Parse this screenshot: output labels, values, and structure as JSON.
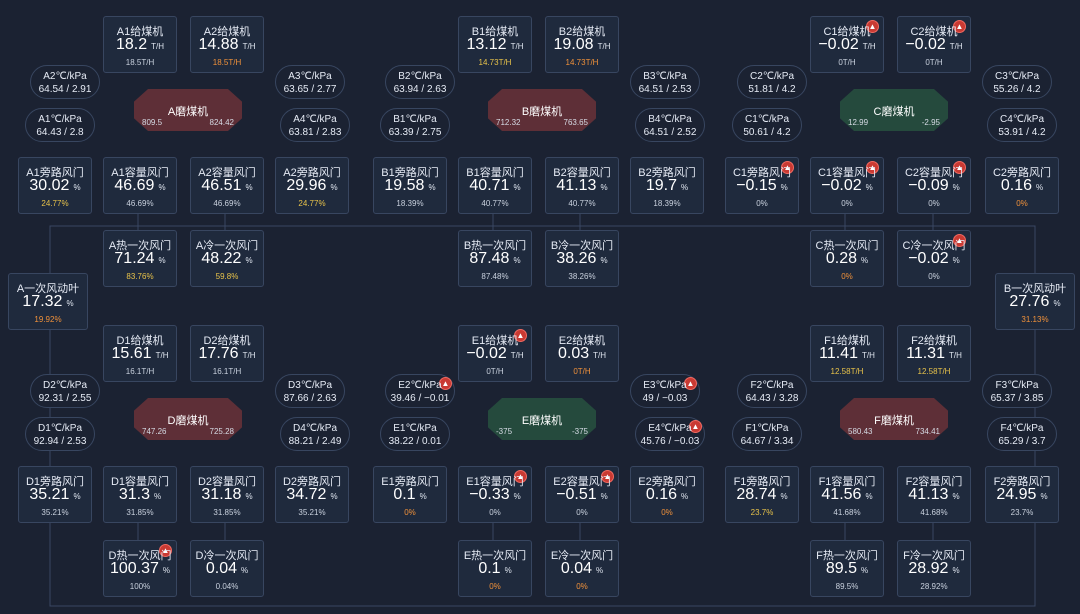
{
  "colors": {
    "background": "#1b2232",
    "card": "#1f2a3d",
    "border": "#384660",
    "mill_red": "#5e2f37",
    "mill_green": "#254a3d",
    "yellow": "#e8c34a",
    "orange": "#f0913a",
    "alarm": "#c93a33"
  },
  "icons": {
    "alarm": "alarm-bell-icon"
  },
  "mills": [
    {
      "id": "a",
      "name": "A磨煤机",
      "color": "red",
      "left": "809.5",
      "right": "824.42",
      "feeders": [
        {
          "label": "A1给煤机",
          "value": "18.2",
          "unit": "T/H",
          "sub": "18.5T/H",
          "sub_color": "w",
          "alarm": false
        },
        {
          "label": "A2给煤机",
          "value": "14.88",
          "unit": "T/H",
          "sub": "18.5T/H",
          "sub_color": "o",
          "alarm": false
        }
      ],
      "pressures": [
        {
          "label": "A2℃/kPa",
          "value": "64.54 / 2.91"
        },
        {
          "label": "A3℃/kPa",
          "value": "63.65 / 2.77"
        },
        {
          "label": "A1℃/kPa",
          "value": "64.43 / 2.8"
        },
        {
          "label": "A4℃/kPa",
          "value": "63.81 / 2.83"
        }
      ],
      "dampers": [
        {
          "label": "A1旁路风门",
          "value": "30.02",
          "unit": "%",
          "sub": "24.77%",
          "sub_color": "y",
          "alarm": false
        },
        {
          "label": "A1容量风门",
          "value": "46.69",
          "unit": "%",
          "sub": "46.69%",
          "sub_color": "w",
          "alarm": false
        },
        {
          "label": "A2容量风门",
          "value": "46.51",
          "unit": "%",
          "sub": "46.69%",
          "sub_color": "w",
          "alarm": false
        },
        {
          "label": "A2旁路风门",
          "value": "29.96",
          "unit": "%",
          "sub": "24.77%",
          "sub_color": "y",
          "alarm": false
        }
      ],
      "air": [
        {
          "label": "A热一次风门",
          "value": "71.24",
          "unit": "%",
          "sub": "83.76%",
          "sub_color": "y",
          "alarm": false
        },
        {
          "label": "A冷一次风门",
          "value": "48.22",
          "unit": "%",
          "sub": "59.8%",
          "sub_color": "y",
          "alarm": false
        }
      ]
    },
    {
      "id": "b",
      "name": "B磨煤机",
      "color": "red",
      "left": "712.32",
      "right": "763.65",
      "feeders": [
        {
          "label": "B1给煤机",
          "value": "13.12",
          "unit": "T/H",
          "sub": "14.73T/H",
          "sub_color": "y",
          "alarm": false
        },
        {
          "label": "B2给煤机",
          "value": "19.08",
          "unit": "T/H",
          "sub": "14.73T/H",
          "sub_color": "o",
          "alarm": false
        }
      ],
      "pressures": [
        {
          "label": "B2℃/kPa",
          "value": "63.94 / 2.63"
        },
        {
          "label": "B3℃/kPa",
          "value": "64.51 / 2.53"
        },
        {
          "label": "B1℃/kPa",
          "value": "63.39 / 2.75"
        },
        {
          "label": "B4℃/kPa",
          "value": "64.51 / 2.52"
        }
      ],
      "dampers": [
        {
          "label": "B1旁路风门",
          "value": "19.58",
          "unit": "%",
          "sub": "18.39%",
          "sub_color": "w",
          "alarm": false
        },
        {
          "label": "B1容量风门",
          "value": "40.71",
          "unit": "%",
          "sub": "40.77%",
          "sub_color": "w",
          "alarm": false
        },
        {
          "label": "B2容量风门",
          "value": "41.13",
          "unit": "%",
          "sub": "40.77%",
          "sub_color": "w",
          "alarm": false
        },
        {
          "label": "B2旁路风门",
          "value": "19.7",
          "unit": "%",
          "sub": "18.39%",
          "sub_color": "w",
          "alarm": false
        }
      ],
      "air": [
        {
          "label": "B热一次风门",
          "value": "87.48",
          "unit": "%",
          "sub": "87.48%",
          "sub_color": "w",
          "alarm": false
        },
        {
          "label": "B冷一次风门",
          "value": "38.26",
          "unit": "%",
          "sub": "38.26%",
          "sub_color": "w",
          "alarm": false
        }
      ]
    },
    {
      "id": "c",
      "name": "C磨煤机",
      "color": "green",
      "left": "12.99",
      "right": "-2.95",
      "feeders": [
        {
          "label": "C1给煤机",
          "value": "−0.02",
          "unit": "T/H",
          "sub": "0T/H",
          "sub_color": "w",
          "alarm": true
        },
        {
          "label": "C2给煤机",
          "value": "−0.02",
          "unit": "T/H",
          "sub": "0T/H",
          "sub_color": "w",
          "alarm": true
        }
      ],
      "pressures": [
        {
          "label": "C2℃/kPa",
          "value": "51.81 / 4.2"
        },
        {
          "label": "C3℃/kPa",
          "value": "55.26 / 4.2"
        },
        {
          "label": "C1℃/kPa",
          "value": "50.61 / 4.2"
        },
        {
          "label": "C4℃/kPa",
          "value": "53.91 / 4.2"
        }
      ],
      "dampers": [
        {
          "label": "C1旁路风门",
          "value": "−0.15",
          "unit": "%",
          "sub": "0%",
          "sub_color": "w",
          "alarm": true
        },
        {
          "label": "C1容量风门",
          "value": "−0.02",
          "unit": "%",
          "sub": "0%",
          "sub_color": "w",
          "alarm": true
        },
        {
          "label": "C2容量风门",
          "value": "−0.09",
          "unit": "%",
          "sub": "0%",
          "sub_color": "w",
          "alarm": true
        },
        {
          "label": "C2旁路风门",
          "value": "0.16",
          "unit": "%",
          "sub": "0%",
          "sub_color": "o",
          "alarm": false
        }
      ],
      "air": [
        {
          "label": "C热一次风门",
          "value": "0.28",
          "unit": "%",
          "sub": "0%",
          "sub_color": "o",
          "alarm": false
        },
        {
          "label": "C冷一次风门",
          "value": "−0.02",
          "unit": "%",
          "sub": "0%",
          "sub_color": "w",
          "alarm": true
        }
      ]
    },
    {
      "id": "d",
      "name": "D磨煤机",
      "color": "red",
      "left": "747.26",
      "right": "725.28",
      "feeders": [
        {
          "label": "D1给煤机",
          "value": "15.61",
          "unit": "T/H",
          "sub": "16.1T/H",
          "sub_color": "w",
          "alarm": false
        },
        {
          "label": "D2给煤机",
          "value": "17.76",
          "unit": "T/H",
          "sub": "16.1T/H",
          "sub_color": "w",
          "alarm": false
        }
      ],
      "pressures": [
        {
          "label": "D2℃/kPa",
          "value": "92.31 / 2.55"
        },
        {
          "label": "D3℃/kPa",
          "value": "87.66 / 2.63"
        },
        {
          "label": "D1℃/kPa",
          "value": "92.94 / 2.53"
        },
        {
          "label": "D4℃/kPa",
          "value": "88.21 / 2.49"
        }
      ],
      "dampers": [
        {
          "label": "D1旁路风门",
          "value": "35.21",
          "unit": "%",
          "sub": "35.21%",
          "sub_color": "w",
          "alarm": false
        },
        {
          "label": "D1容量风门",
          "value": "31.3",
          "unit": "%",
          "sub": "31.85%",
          "sub_color": "w",
          "alarm": false
        },
        {
          "label": "D2容量风门",
          "value": "31.18",
          "unit": "%",
          "sub": "31.85%",
          "sub_color": "w",
          "alarm": false
        },
        {
          "label": "D2旁路风门",
          "value": "34.72",
          "unit": "%",
          "sub": "35.21%",
          "sub_color": "w",
          "alarm": false
        }
      ],
      "air": [
        {
          "label": "D热一次风门",
          "value": "100.37",
          "unit": "%",
          "sub": "100%",
          "sub_color": "w",
          "alarm": true
        },
        {
          "label": "D冷一次风门",
          "value": "0.04",
          "unit": "%",
          "sub": "0.04%",
          "sub_color": "w",
          "alarm": false
        }
      ]
    },
    {
      "id": "e",
      "name": "E磨煤机",
      "color": "green",
      "left": "-375",
      "right": "-375",
      "feeders": [
        {
          "label": "E1给煤机",
          "value": "−0.02",
          "unit": "T/H",
          "sub": "0T/H",
          "sub_color": "w",
          "alarm": true
        },
        {
          "label": "E2给煤机",
          "value": "0.03",
          "unit": "T/H",
          "sub": "0T/H",
          "sub_color": "o",
          "alarm": false
        }
      ],
      "pressures": [
        {
          "label": "E2℃/kPa",
          "value": "39.46 / −0.01",
          "alarm": true
        },
        {
          "label": "E3℃/kPa",
          "value": "49 / −0.03",
          "alarm": true
        },
        {
          "label": "E1℃/kPa",
          "value": "38.22 / 0.01"
        },
        {
          "label": "E4℃/kPa",
          "value": "45.76 / −0.03",
          "alarm": true
        }
      ],
      "dampers": [
        {
          "label": "E1旁路风门",
          "value": "0.1",
          "unit": "%",
          "sub": "0%",
          "sub_color": "o",
          "alarm": false
        },
        {
          "label": "E1容量风门",
          "value": "−0.33",
          "unit": "%",
          "sub": "0%",
          "sub_color": "w",
          "alarm": true
        },
        {
          "label": "E2容量风门",
          "value": "−0.51",
          "unit": "%",
          "sub": "0%",
          "sub_color": "w",
          "alarm": true
        },
        {
          "label": "E2旁路风门",
          "value": "0.16",
          "unit": "%",
          "sub": "0%",
          "sub_color": "o",
          "alarm": false
        }
      ],
      "air": [
        {
          "label": "E热一次风门",
          "value": "0.1",
          "unit": "%",
          "sub": "0%",
          "sub_color": "o",
          "alarm": false
        },
        {
          "label": "E冷一次风门",
          "value": "0.04",
          "unit": "%",
          "sub": "0%",
          "sub_color": "o",
          "alarm": false
        }
      ]
    },
    {
      "id": "f",
      "name": "F磨煤机",
      "color": "red",
      "left": "580.43",
      "right": "734.41",
      "feeders": [
        {
          "label": "F1给煤机",
          "value": "11.41",
          "unit": "T/H",
          "sub": "12.58T/H",
          "sub_color": "y",
          "alarm": false
        },
        {
          "label": "F2给煤机",
          "value": "11.31",
          "unit": "T/H",
          "sub": "12.58T/H",
          "sub_color": "y",
          "alarm": false
        }
      ],
      "pressures": [
        {
          "label": "F2℃/kPa",
          "value": "64.43 / 3.28"
        },
        {
          "label": "F3℃/kPa",
          "value": "65.37 / 3.85"
        },
        {
          "label": "F1℃/kPa",
          "value": "64.67 / 3.34"
        },
        {
          "label": "F4℃/kPa",
          "value": "65.29 / 3.7"
        }
      ],
      "dampers": [
        {
          "label": "F1旁路风门",
          "value": "28.74",
          "unit": "%",
          "sub": "23.7%",
          "sub_color": "y",
          "alarm": false
        },
        {
          "label": "F1容量风门",
          "value": "41.56",
          "unit": "%",
          "sub": "41.68%",
          "sub_color": "w",
          "alarm": false
        },
        {
          "label": "F2容量风门",
          "value": "41.13",
          "unit": "%",
          "sub": "41.68%",
          "sub_color": "w",
          "alarm": false
        },
        {
          "label": "F2旁路风门",
          "value": "24.95",
          "unit": "%",
          "sub": "23.7%",
          "sub_color": "w",
          "alarm": false
        }
      ],
      "air": [
        {
          "label": "F热一次风门",
          "value": "89.5",
          "unit": "%",
          "sub": "89.5%",
          "sub_color": "w",
          "alarm": false
        },
        {
          "label": "F冷一次风门",
          "value": "28.92",
          "unit": "%",
          "sub": "28.92%",
          "sub_color": "w",
          "alarm": false
        }
      ]
    }
  ],
  "fans": [
    {
      "id": "a",
      "label": "A一次风动叶",
      "value": "17.32",
      "unit": "%",
      "sub": "19.92%",
      "sub_color": "o"
    },
    {
      "id": "b",
      "label": "B一次风动叶",
      "value": "27.76",
      "unit": "%",
      "sub": "31.13%",
      "sub_color": "o"
    }
  ]
}
